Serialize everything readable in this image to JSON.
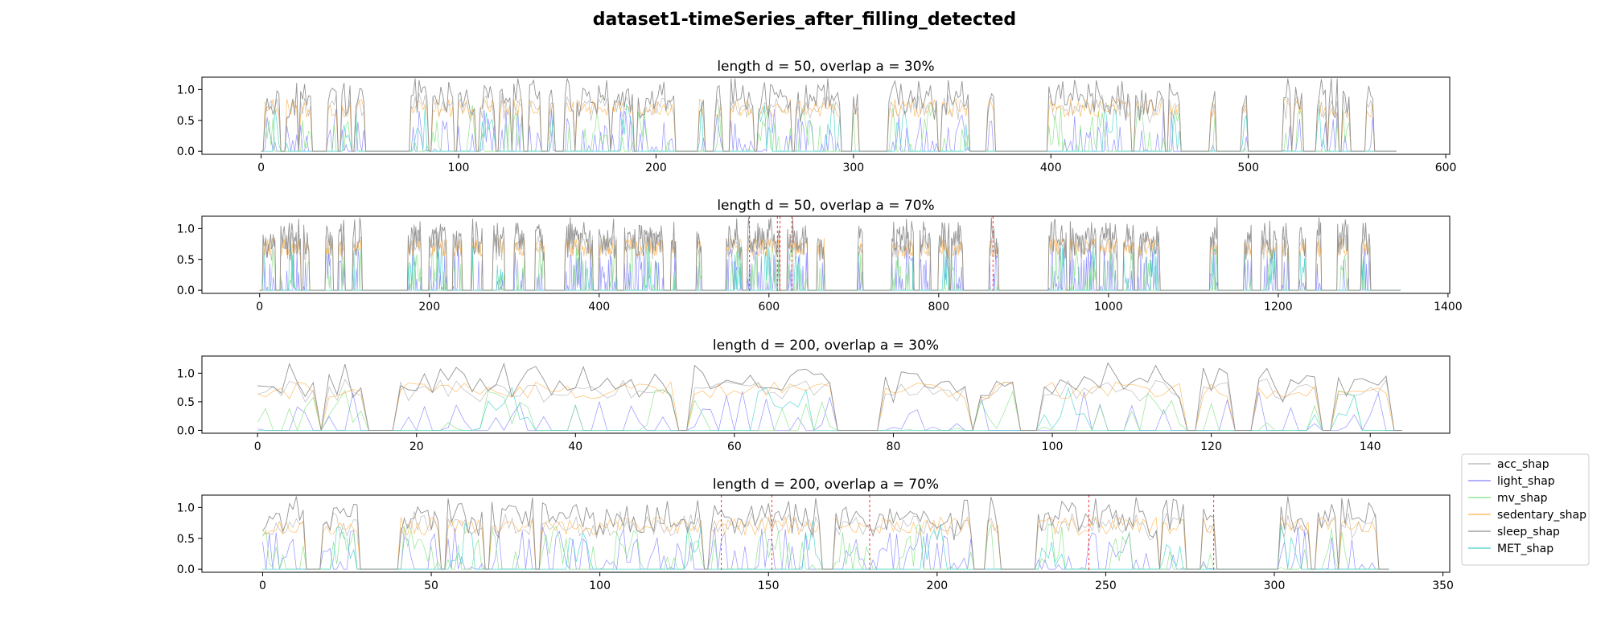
{
  "chart_data": {
    "type": "line",
    "title": "dataset1-timeSeries_after_filling_detected",
    "legend": {
      "placement": "right",
      "entries": [
        {
          "name": "acc_shap",
          "color": "#b0b0b0"
        },
        {
          "name": "light_shap",
          "color": "#8080ff"
        },
        {
          "name": "mv_shap",
          "color": "#7fe07f"
        },
        {
          "name": "sedentary_shap",
          "color": "#ffb14a"
        },
        {
          "name": "sleep_shap",
          "color": "#8f8f8f"
        },
        {
          "name": "MET_shap",
          "color": "#40d0c8"
        }
      ]
    },
    "anomaly_line_color": "#ff4040",
    "subplots": [
      {
        "title": "length d = 50, overlap a = 30%",
        "xlim": [
          -30,
          602
        ],
        "ylim": [
          -0.05,
          1.2
        ],
        "xticks": [
          0,
          100,
          200,
          300,
          400,
          500,
          600
        ],
        "xtick_labels": [
          "0",
          "100",
          "200",
          "300",
          "400",
          "500",
          "600"
        ],
        "yticks": [
          0.0,
          0.5,
          1.0
        ],
        "ytick_labels": [
          "0.0",
          "0.5",
          "1.0"
        ],
        "n_points": 576,
        "active_segments": [
          [
            2,
            9
          ],
          [
            13,
            18
          ],
          [
            20,
            25
          ],
          [
            34,
            38
          ],
          [
            41,
            45
          ],
          [
            48,
            52
          ],
          [
            76,
            84
          ],
          [
            87,
            97
          ],
          [
            100,
            108
          ],
          [
            111,
            118
          ],
          [
            121,
            126
          ],
          [
            128,
            132
          ],
          [
            136,
            141
          ],
          [
            146,
            148
          ],
          [
            154,
            158
          ],
          [
            160,
            176
          ],
          [
            178,
            188
          ],
          [
            191,
            209
          ],
          [
            222,
            224
          ],
          [
            230,
            233
          ],
          [
            238,
            249
          ],
          [
            252,
            268
          ],
          [
            271,
            293
          ],
          [
            300,
            302
          ],
          [
            318,
            342
          ],
          [
            345,
            358
          ],
          [
            368,
            371
          ],
          [
            399,
            407
          ],
          [
            408,
            440
          ],
          [
            443,
            457
          ],
          [
            460,
            465
          ],
          [
            481,
            483
          ],
          [
            497,
            499
          ],
          [
            518,
            521
          ],
          [
            523,
            527
          ],
          [
            535,
            539
          ],
          [
            541,
            545
          ],
          [
            548,
            551
          ],
          [
            560,
            563
          ]
        ],
        "anomalies_x": [],
        "seed": 11
      },
      {
        "title": "length d = 50, overlap a = 70%",
        "xlim": [
          -68,
          1402
        ],
        "ylim": [
          -0.05,
          1.2
        ],
        "xticks": [
          0,
          200,
          400,
          600,
          800,
          1000,
          1200,
          1400
        ],
        "xtick_labels": [
          "0",
          "200",
          "400",
          "600",
          "800",
          "1000",
          "1200",
          "1400"
        ],
        "yticks": [
          0.0,
          0.5,
          1.0
        ],
        "ytick_labels": [
          "0.0",
          "0.5",
          "1.0"
        ],
        "n_points": 1345,
        "active_segments": [
          [
            4,
            18
          ],
          [
            25,
            48
          ],
          [
            52,
            58
          ],
          [
            78,
            86
          ],
          [
            93,
            100
          ],
          [
            110,
            120
          ],
          [
            175,
            190
          ],
          [
            200,
            220
          ],
          [
            228,
            238
          ],
          [
            250,
            262
          ],
          [
            275,
            288
          ],
          [
            300,
            312
          ],
          [
            325,
            335
          ],
          [
            360,
            392
          ],
          [
            400,
            420
          ],
          [
            430,
            475
          ],
          [
            485,
            490
          ],
          [
            515,
            520
          ],
          [
            550,
            568
          ],
          [
            575,
            612
          ],
          [
            622,
            645
          ],
          [
            657,
            665
          ],
          [
            705,
            710
          ],
          [
            745,
            770
          ],
          [
            778,
            790
          ],
          [
            800,
            812
          ],
          [
            815,
            828
          ],
          [
            860,
            870
          ],
          [
            930,
            950
          ],
          [
            955,
            985
          ],
          [
            990,
            1010
          ],
          [
            1018,
            1030
          ],
          [
            1035,
            1060
          ],
          [
            1120,
            1128
          ],
          [
            1160,
            1168
          ],
          [
            1180,
            1198
          ],
          [
            1205,
            1212
          ],
          [
            1225,
            1232
          ],
          [
            1245,
            1250
          ],
          [
            1270,
            1282
          ],
          [
            1298,
            1308
          ]
        ],
        "anomalies_x": [
          577,
          610,
          613,
          627,
          864
        ],
        "seed": 23
      },
      {
        "title": "length d = 200, overlap a = 30%",
        "xlim": [
          -7,
          150
        ],
        "ylim": [
          -0.05,
          1.3
        ],
        "xticks": [
          0,
          20,
          40,
          60,
          80,
          100,
          120,
          140
        ],
        "xtick_labels": [
          "0",
          "20",
          "40",
          "60",
          "80",
          "100",
          "120",
          "140"
        ],
        "yticks": [
          0.0,
          0.5,
          1.0
        ],
        "ytick_labels": [
          "0.0",
          "0.5",
          "1.0"
        ],
        "n_points": 145,
        "active_segments": [
          [
            0,
            7
          ],
          [
            9,
            13
          ],
          [
            18,
            52
          ],
          [
            55,
            60
          ],
          [
            61,
            72
          ],
          [
            79,
            89
          ],
          [
            91,
            95
          ],
          [
            99,
            116
          ],
          [
            119,
            122
          ],
          [
            126,
            133
          ],
          [
            136,
            138
          ],
          [
            139,
            142
          ]
        ],
        "anomalies_x": [],
        "seed": 37
      },
      {
        "title": "length d = 200, overlap a = 70%",
        "xlim": [
          -18,
          352
        ],
        "ylim": [
          -0.05,
          1.2
        ],
        "xticks": [
          0,
          50,
          100,
          150,
          200,
          250,
          300,
          350
        ],
        "xtick_labels": [
          "0",
          "50",
          "100",
          "150",
          "200",
          "250",
          "300",
          "350"
        ],
        "yticks": [
          0.0,
          0.5,
          1.0
        ],
        "ytick_labels": [
          "0.0",
          "0.5",
          "1.0"
        ],
        "n_points": 335,
        "active_segments": [
          [
            0,
            12
          ],
          [
            18,
            28
          ],
          [
            41,
            52
          ],
          [
            55,
            65
          ],
          [
            68,
            80
          ],
          [
            83,
            89
          ],
          [
            90,
            130
          ],
          [
            133,
            165
          ],
          [
            170,
            180
          ],
          [
            181,
            210
          ],
          [
            215,
            218
          ],
          [
            230,
            265
          ],
          [
            267,
            273
          ],
          [
            279,
            282
          ],
          [
            302,
            310
          ],
          [
            313,
            318
          ],
          [
            320,
            330
          ]
        ],
        "anomalies_x": [
          136,
          151,
          180,
          245,
          282
        ],
        "seed": 53
      }
    ]
  }
}
